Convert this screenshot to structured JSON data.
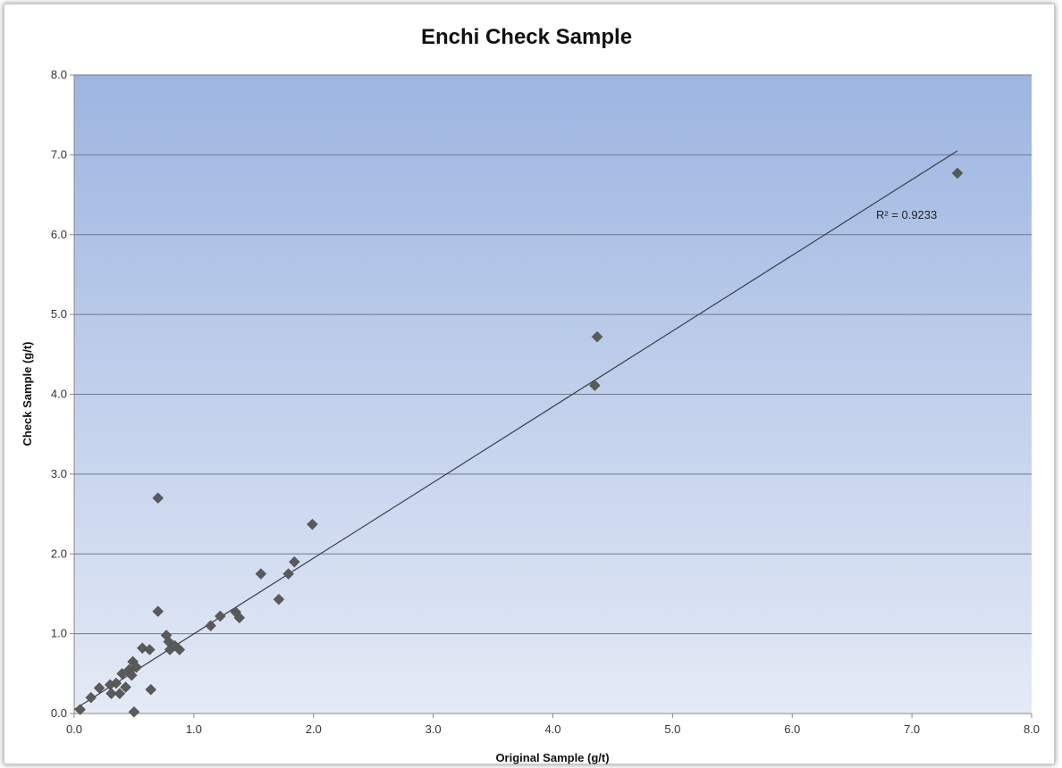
{
  "chart_data": {
    "type": "scatter",
    "title": "Enchi Check Sample",
    "xlabel": "Original Sample (g/t)",
    "ylabel": "Check Sample (g/t)",
    "xlim": [
      0,
      8
    ],
    "ylim": [
      0,
      8
    ],
    "x_ticks": [
      "0.0",
      "1.0",
      "2.0",
      "3.0",
      "4.0",
      "5.0",
      "6.0",
      "7.0",
      "8.0"
    ],
    "y_ticks": [
      "0.0",
      "1.0",
      "2.0",
      "3.0",
      "4.0",
      "5.0",
      "6.0",
      "7.0",
      "8.0"
    ],
    "grid": "horizontal",
    "marker": "diamond",
    "marker_color": "#5a5a5a",
    "points": [
      {
        "x": 0.05,
        "y": 0.05
      },
      {
        "x": 0.14,
        "y": 0.2
      },
      {
        "x": 0.21,
        "y": 0.32
      },
      {
        "x": 0.3,
        "y": 0.36
      },
      {
        "x": 0.31,
        "y": 0.25
      },
      {
        "x": 0.35,
        "y": 0.38
      },
      {
        "x": 0.38,
        "y": 0.25
      },
      {
        "x": 0.4,
        "y": 0.5
      },
      {
        "x": 0.43,
        "y": 0.33
      },
      {
        "x": 0.46,
        "y": 0.55
      },
      {
        "x": 0.48,
        "y": 0.48
      },
      {
        "x": 0.49,
        "y": 0.65
      },
      {
        "x": 0.5,
        "y": 0.02
      },
      {
        "x": 0.52,
        "y": 0.58
      },
      {
        "x": 0.57,
        "y": 0.82
      },
      {
        "x": 0.63,
        "y": 0.8
      },
      {
        "x": 0.64,
        "y": 0.3
      },
      {
        "x": 0.7,
        "y": 2.7
      },
      {
        "x": 0.7,
        "y": 1.28
      },
      {
        "x": 0.77,
        "y": 0.98
      },
      {
        "x": 0.79,
        "y": 0.9
      },
      {
        "x": 0.8,
        "y": 0.8
      },
      {
        "x": 0.84,
        "y": 0.85
      },
      {
        "x": 0.88,
        "y": 0.8
      },
      {
        "x": 1.14,
        "y": 1.1
      },
      {
        "x": 1.22,
        "y": 1.22
      },
      {
        "x": 1.35,
        "y": 1.27
      },
      {
        "x": 1.38,
        "y": 1.2
      },
      {
        "x": 1.56,
        "y": 1.75
      },
      {
        "x": 1.71,
        "y": 1.43
      },
      {
        "x": 1.79,
        "y": 1.75
      },
      {
        "x": 1.84,
        "y": 1.9
      },
      {
        "x": 1.99,
        "y": 2.37
      },
      {
        "x": 4.35,
        "y": 4.11
      },
      {
        "x": 4.37,
        "y": 4.72
      },
      {
        "x": 7.38,
        "y": 6.77
      }
    ],
    "trendline": {
      "type": "linear",
      "from": {
        "x": 0.0,
        "y": 0.05
      },
      "to": {
        "x": 7.38,
        "y": 7.05
      },
      "label": "R² = 0.9233",
      "label_at": {
        "x": 6.7,
        "y": 6.2
      }
    },
    "plot_background": {
      "top": "#9db5e1",
      "bottom": "#e4eaf6"
    },
    "gridline_color": "#6b7a8c"
  }
}
